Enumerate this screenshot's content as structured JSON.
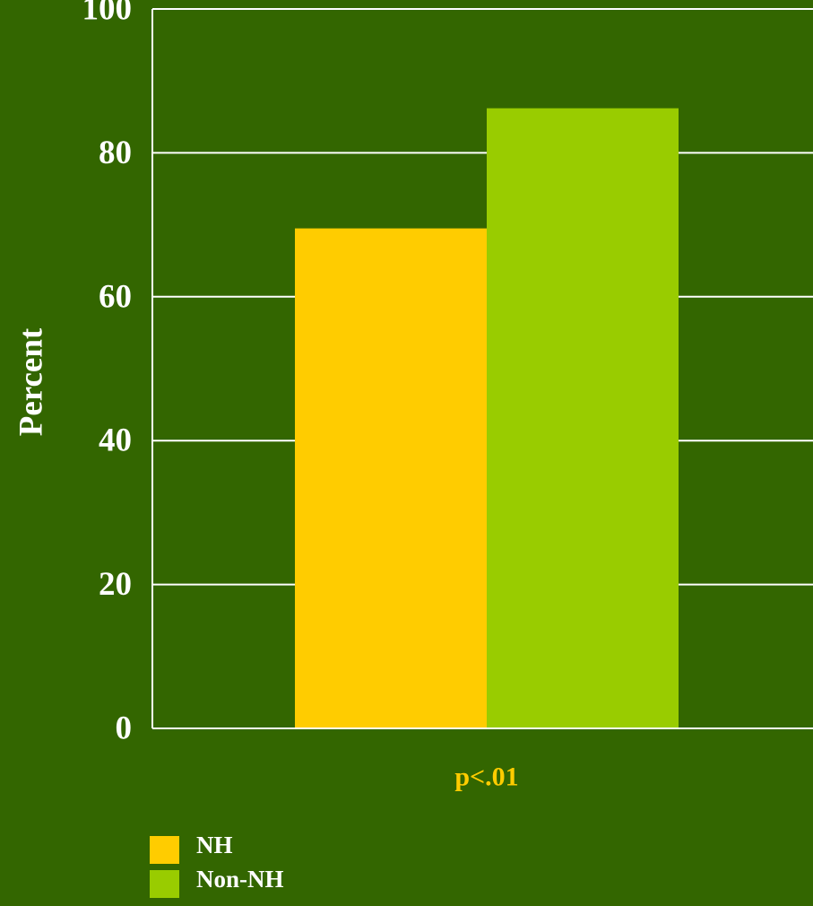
{
  "colors": {
    "background": "#336600",
    "gridline": "#ffffff",
    "text": "#ffffff",
    "annotation": "#ffcc00"
  },
  "chart_data": {
    "type": "bar",
    "categories": [
      "p<.01"
    ],
    "series": [
      {
        "name": "NH",
        "values": [
          69.5
        ],
        "color": "#ffcc00"
      },
      {
        "name": "Non-NH",
        "values": [
          86.2
        ],
        "color": "#99cc00"
      }
    ],
    "ylabel": "Percent",
    "xlabel": "",
    "ylim": [
      0,
      100
    ],
    "yticks": [
      0,
      20,
      40,
      60,
      80,
      100
    ],
    "grid": true,
    "legend_position": "bottom-left"
  }
}
